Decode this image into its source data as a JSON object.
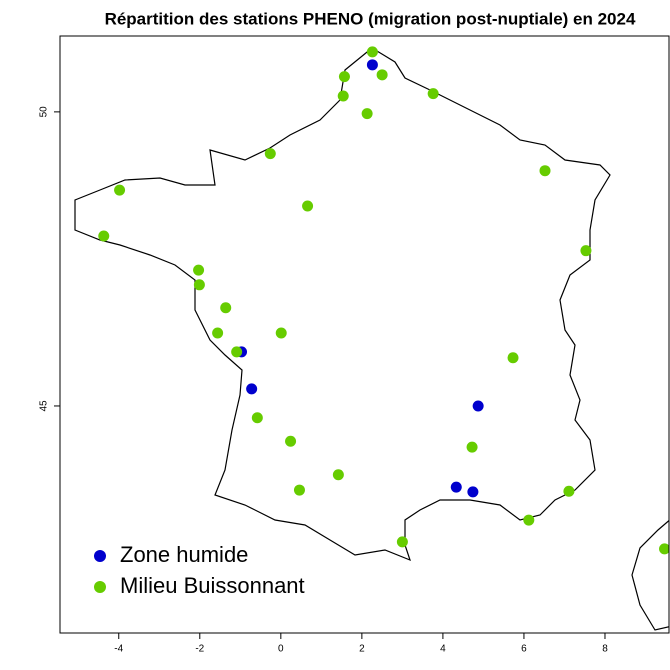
{
  "chart_data": {
    "type": "scatter",
    "title": "Répartition des stations PHENO (migration post-nuptiale) en 2024",
    "xlim": [
      -5.45,
      9.58
    ],
    "ylim": [
      41.14,
      51.29
    ],
    "xticks": [
      -4,
      -2,
      0,
      2,
      4,
      6,
      8
    ],
    "yticks": [
      45,
      50
    ],
    "legend": "bottom-left",
    "series": [
      {
        "name": "Zone humide",
        "color": "#0000cd",
        "x": [
          2.26,
          -0.97,
          -0.72,
          4.87,
          4.33,
          4.74
        ],
        "y": [
          50.8,
          45.92,
          45.29,
          45.0,
          43.62,
          43.54
        ]
      },
      {
        "name": "Milieu Buissonnant",
        "color": "#66cc00",
        "x": [
          2.26,
          1.57,
          2.5,
          1.54,
          3.76,
          2.13,
          -0.26,
          6.52,
          -3.98,
          0.66,
          -4.37,
          7.53,
          -2.03,
          -2.01,
          -1.36,
          -1.56,
          0.01,
          -1.09,
          5.73,
          -0.58,
          0.24,
          4.72,
          1.42,
          0.46,
          7.11,
          6.12,
          3.0,
          9.47
        ],
        "y": [
          51.02,
          50.6,
          50.63,
          50.27,
          50.31,
          49.97,
          49.29,
          49.0,
          48.67,
          48.4,
          47.89,
          47.64,
          47.31,
          47.06,
          46.67,
          46.24,
          46.24,
          45.92,
          45.82,
          44.8,
          44.4,
          44.3,
          43.83,
          43.57,
          43.55,
          43.06,
          42.69,
          42.57
        ]
      }
    ]
  }
}
